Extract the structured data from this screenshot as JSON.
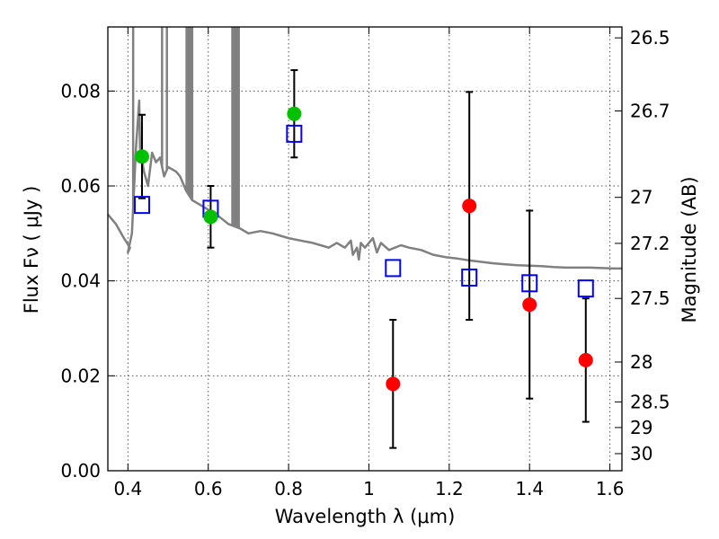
{
  "chart_data": {
    "type": "scatter",
    "xlabel": "Wavelength  λ (μm)",
    "ylabel_left": "Flux  Fν  ( μJy )",
    "ylabel_right": "Magnitude (AB)",
    "xlim": [
      0.35,
      1.63
    ],
    "ylim": [
      0.0,
      0.0935
    ],
    "grid": true,
    "x_ticks": [
      0.4,
      0.6,
      0.8,
      1.0,
      1.2,
      1.4,
      1.6
    ],
    "x_tick_labels": [
      "0.4",
      "0.6",
      "0.8",
      "1",
      "1.2",
      "1.4",
      "1.6"
    ],
    "y_ticks": [
      0.0,
      0.02,
      0.04,
      0.06,
      0.08
    ],
    "y_tick_labels": [
      "0.00",
      "0.02",
      "0.04",
      "0.06",
      "0.08"
    ],
    "right_ticks": [
      {
        "label": "26.5",
        "flux": 0.0912
      },
      {
        "label": "26.7",
        "flux": 0.0758
      },
      {
        "label": "27",
        "flux": 0.0576
      },
      {
        "label": "27.2",
        "flux": 0.0479
      },
      {
        "label": "27.5",
        "flux": 0.0363
      },
      {
        "label": "28",
        "flux": 0.0229
      },
      {
        "label": "28.5",
        "flux": 0.0145
      },
      {
        "label": "29",
        "flux": 0.0091
      },
      {
        "label": "30",
        "flux": 0.0036
      }
    ],
    "series": [
      {
        "marker": "green-circle",
        "color": "#00c000",
        "points": [
          {
            "x": 0.435,
            "y": 0.0662,
            "err": 0.0088
          },
          {
            "x": 0.606,
            "y": 0.0535,
            "err": 0.0065
          },
          {
            "x": 0.814,
            "y": 0.0752,
            "err": 0.0092
          }
        ]
      },
      {
        "marker": "red-circle",
        "color": "#ff0000",
        "points": [
          {
            "x": 1.06,
            "y": 0.0183,
            "err": 0.0135
          },
          {
            "x": 1.25,
            "y": 0.0558,
            "err": 0.024
          },
          {
            "x": 1.4,
            "y": 0.035,
            "err": 0.0198
          },
          {
            "x": 1.54,
            "y": 0.0233,
            "err": 0.013
          }
        ]
      },
      {
        "marker": "blue-open-square",
        "color": "#0000ff",
        "points": [
          {
            "x": 0.435,
            "y": 0.056
          },
          {
            "x": 0.606,
            "y": 0.0552
          },
          {
            "x": 0.814,
            "y": 0.071
          },
          {
            "x": 1.06,
            "y": 0.0427
          },
          {
            "x": 1.25,
            "y": 0.0407
          },
          {
            "x": 1.4,
            "y": 0.0395
          },
          {
            "x": 1.54,
            "y": 0.0384
          }
        ]
      },
      {
        "marker": "gray-line",
        "color": "#808080",
        "points": [
          {
            "x": 0.35,
            "y": 0.054
          },
          {
            "x": 0.37,
            "y": 0.052
          },
          {
            "x": 0.39,
            "y": 0.049
          },
          {
            "x": 0.405,
            "y": 0.047
          },
          {
            "x": 0.4,
            "y": 0.046
          },
          {
            "x": 0.41,
            "y": 0.05
          },
          {
            "x": 0.42,
            "y": 0.068
          },
          {
            "x": 0.428,
            "y": 0.078
          },
          {
            "x": 0.43,
            "y": 0.068
          },
          {
            "x": 0.44,
            "y": 0.063
          },
          {
            "x": 0.45,
            "y": 0.06
          },
          {
            "x": 0.46,
            "y": 0.067
          },
          {
            "x": 0.47,
            "y": 0.065
          },
          {
            "x": 0.48,
            "y": 0.066
          },
          {
            "x": 0.49,
            "y": 0.062
          },
          {
            "x": 0.5,
            "y": 0.064
          },
          {
            "x": 0.52,
            "y": 0.063
          },
          {
            "x": 0.53,
            "y": 0.062
          },
          {
            "x": 0.545,
            "y": 0.059
          },
          {
            "x": 0.56,
            "y": 0.057
          },
          {
            "x": 0.58,
            "y": 0.056
          },
          {
            "x": 0.6,
            "y": 0.055
          },
          {
            "x": 0.62,
            "y": 0.054
          },
          {
            "x": 0.65,
            "y": 0.052
          },
          {
            "x": 0.68,
            "y": 0.051
          },
          {
            "x": 0.7,
            "y": 0.05
          },
          {
            "x": 0.73,
            "y": 0.0505
          },
          {
            "x": 0.76,
            "y": 0.05
          },
          {
            "x": 0.78,
            "y": 0.0495
          },
          {
            "x": 0.8,
            "y": 0.049
          },
          {
            "x": 0.83,
            "y": 0.0485
          },
          {
            "x": 0.86,
            "y": 0.048
          },
          {
            "x": 0.88,
            "y": 0.0475
          },
          {
            "x": 0.9,
            "y": 0.047
          },
          {
            "x": 0.92,
            "y": 0.048
          },
          {
            "x": 0.94,
            "y": 0.047
          },
          {
            "x": 0.955,
            "y": 0.0485
          },
          {
            "x": 0.96,
            "y": 0.0455
          },
          {
            "x": 0.97,
            "y": 0.047
          },
          {
            "x": 0.975,
            "y": 0.0445
          },
          {
            "x": 0.98,
            "y": 0.048
          },
          {
            "x": 0.99,
            "y": 0.047
          },
          {
            "x": 1.0,
            "y": 0.048
          },
          {
            "x": 1.01,
            "y": 0.049
          },
          {
            "x": 1.02,
            "y": 0.046
          },
          {
            "x": 1.03,
            "y": 0.048
          },
          {
            "x": 1.05,
            "y": 0.0465
          },
          {
            "x": 1.08,
            "y": 0.0475
          },
          {
            "x": 1.1,
            "y": 0.047
          },
          {
            "x": 1.13,
            "y": 0.0465
          },
          {
            "x": 1.16,
            "y": 0.0455
          },
          {
            "x": 1.19,
            "y": 0.045
          },
          {
            "x": 1.22,
            "y": 0.0447
          },
          {
            "x": 1.25,
            "y": 0.0443
          },
          {
            "x": 1.28,
            "y": 0.044
          },
          {
            "x": 1.31,
            "y": 0.0437
          },
          {
            "x": 1.34,
            "y": 0.0435
          },
          {
            "x": 1.37,
            "y": 0.0433
          },
          {
            "x": 1.4,
            "y": 0.0432
          },
          {
            "x": 1.43,
            "y": 0.0431
          },
          {
            "x": 1.46,
            "y": 0.0429
          },
          {
            "x": 1.49,
            "y": 0.0428
          },
          {
            "x": 1.52,
            "y": 0.0428
          },
          {
            "x": 1.55,
            "y": 0.0428
          },
          {
            "x": 1.58,
            "y": 0.0427
          },
          {
            "x": 1.61,
            "y": 0.0426
          },
          {
            "x": 1.63,
            "y": 0.0426
          }
        ],
        "spikes": [
          {
            "x": 0.413,
            "y": 0.0935
          },
          {
            "x": 0.485,
            "y": 0.0935
          },
          {
            "x": 0.497,
            "y": 0.0935
          },
          {
            "x": 0.546,
            "y": 0.0935
          },
          {
            "x": 0.551,
            "y": 0.0935
          },
          {
            "x": 0.556,
            "y": 0.0935
          },
          {
            "x": 0.56,
            "y": 0.0935
          },
          {
            "x": 0.66,
            "y": 0.0935
          },
          {
            "x": 0.665,
            "y": 0.0935
          },
          {
            "x": 0.669,
            "y": 0.0935
          },
          {
            "x": 0.673,
            "y": 0.0935
          },
          {
            "x": 0.676,
            "y": 0.0935
          }
        ]
      }
    ]
  }
}
